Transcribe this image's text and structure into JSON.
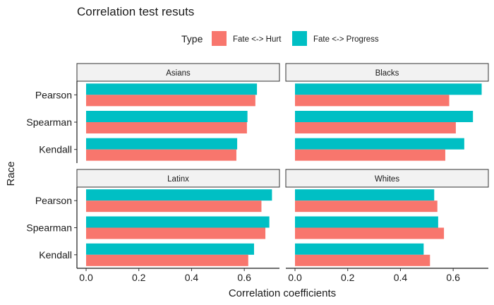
{
  "chart_data": {
    "type": "bar",
    "orientation": "horizontal",
    "title": "Correlation test resuts",
    "xlabel": "Correlation coefficients",
    "ylabel": "Race",
    "xlim": [
      0,
      0.72
    ],
    "xticks": [
      "0.0",
      "0.2",
      "0.4",
      "0.6"
    ],
    "categories": [
      "Pearson",
      "Spearman",
      "Kendall"
    ],
    "legend": {
      "title": "Type",
      "position": "top",
      "entries": [
        {
          "name": "Fate <-> Hurt",
          "color": "#F8766D"
        },
        {
          "name": "Fate <-> Progress",
          "color": "#00BFC4"
        }
      ]
    },
    "facets": [
      {
        "label": "Asians",
        "series": [
          {
            "name": "Fate <-> Hurt",
            "values": [
              0.642,
              0.61,
              0.57
            ]
          },
          {
            "name": "Fate <-> Progress",
            "values": [
              0.648,
              0.612,
              0.573
            ]
          }
        ]
      },
      {
        "label": "Blacks",
        "series": [
          {
            "name": "Fate <-> Hurt",
            "values": [
              0.585,
              0.61,
              0.57
            ]
          },
          {
            "name": "Fate <-> Progress",
            "values": [
              0.708,
              0.675,
              0.642
            ]
          }
        ]
      },
      {
        "label": "Latinx",
        "series": [
          {
            "name": "Fate <-> Hurt",
            "values": [
              0.665,
              0.68,
              0.615
            ]
          },
          {
            "name": "Fate <-> Progress",
            "values": [
              0.705,
              0.695,
              0.637
            ]
          }
        ]
      },
      {
        "label": "Whites",
        "series": [
          {
            "name": "Fate <-> Hurt",
            "values": [
              0.54,
              0.565,
              0.512
            ]
          },
          {
            "name": "Fate <-> Progress",
            "values": [
              0.528,
              0.543,
              0.488
            ]
          }
        ]
      }
    ],
    "grid": false
  }
}
